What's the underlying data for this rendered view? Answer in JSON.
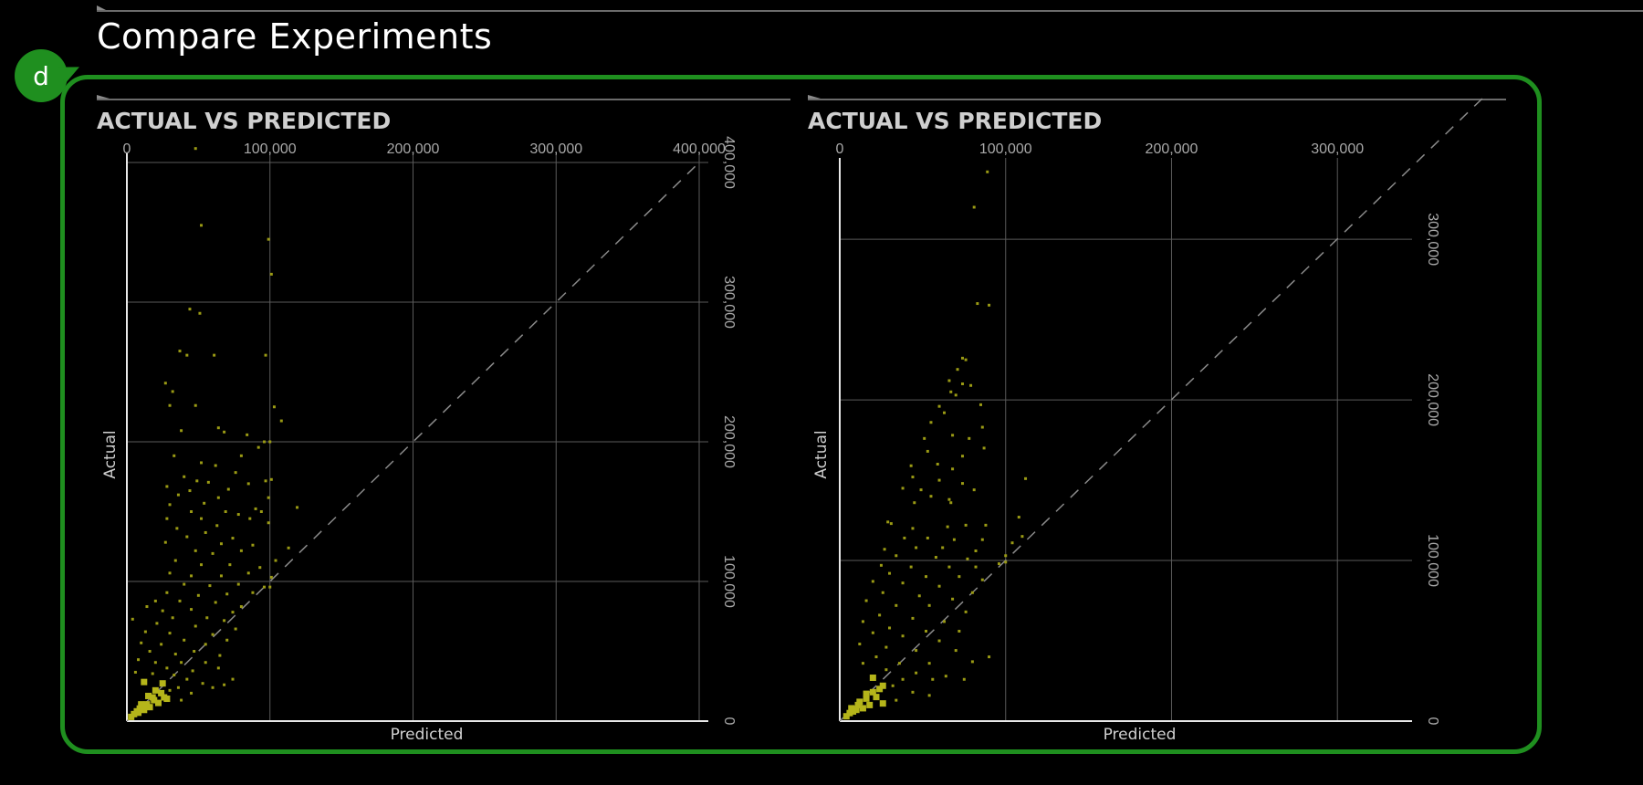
{
  "page": {
    "title": "Compare Experiments",
    "badge": "d"
  },
  "panels": [
    {
      "title": "ACTUAL VS PREDICTED"
    },
    {
      "title": "ACTUAL VS PREDICTED"
    }
  ],
  "chart_data": [
    {
      "type": "scatter",
      "title": "ACTUAL VS PREDICTED",
      "xlabel": "Predicted",
      "ylabel": "Actual",
      "xlim": [
        0,
        400000
      ],
      "ylim": [
        0,
        400000
      ],
      "x_ticks": [
        0,
        100000,
        200000,
        300000,
        400000
      ],
      "x_tick_labels": [
        "0",
        "100,000",
        "200,000",
        "300,000",
        "400,000"
      ],
      "y_ticks": [
        0,
        100000,
        200000,
        300000,
        400000
      ],
      "y_tick_labels": [
        "0",
        "100,000",
        "200,000",
        "300,000",
        "400,000"
      ],
      "reference_line": "y = x",
      "point_color": "#9a9a14",
      "grid": true,
      "points": [
        [
          48000,
          410000
        ],
        [
          52000,
          355000
        ],
        [
          99000,
          345000
        ],
        [
          101000,
          320000
        ],
        [
          44000,
          295000
        ],
        [
          51000,
          292000
        ],
        [
          37000,
          265000
        ],
        [
          42000,
          262000
        ],
        [
          61000,
          262000
        ],
        [
          97000,
          262000
        ],
        [
          27000,
          242000
        ],
        [
          32000,
          236000
        ],
        [
          30000,
          226000
        ],
        [
          48000,
          226000
        ],
        [
          103000,
          225000
        ],
        [
          108000,
          215000
        ],
        [
          38000,
          208000
        ],
        [
          64000,
          210000
        ],
        [
          68000,
          207000
        ],
        [
          84000,
          205000
        ],
        [
          96000,
          200000
        ],
        [
          100000,
          200000
        ],
        [
          92000,
          196000
        ],
        [
          33000,
          190000
        ],
        [
          80000,
          190000
        ],
        [
          52000,
          185000
        ],
        [
          62000,
          183000
        ],
        [
          76000,
          178000
        ],
        [
          40000,
          175000
        ],
        [
          49000,
          172000
        ],
        [
          57000,
          171000
        ],
        [
          101000,
          173000
        ],
        [
          97000,
          172000
        ],
        [
          28000,
          168000
        ],
        [
          44000,
          165000
        ],
        [
          71000,
          166000
        ],
        [
          85000,
          170000
        ],
        [
          36000,
          162000
        ],
        [
          64000,
          160000
        ],
        [
          30000,
          155000
        ],
        [
          54000,
          156000
        ],
        [
          99000,
          160000
        ],
        [
          45000,
          150000
        ],
        [
          69000,
          150000
        ],
        [
          90000,
          152000
        ],
        [
          119000,
          153000
        ],
        [
          94000,
          150000
        ],
        [
          28000,
          145000
        ],
        [
          52000,
          145000
        ],
        [
          78000,
          148000
        ],
        [
          86000,
          145000
        ],
        [
          35000,
          138000
        ],
        [
          63000,
          140000
        ],
        [
          99000,
          142000
        ],
        [
          42000,
          132000
        ],
        [
          55000,
          135000
        ],
        [
          74000,
          131000
        ],
        [
          27000,
          128000
        ],
        [
          66000,
          127000
        ],
        [
          88000,
          126000
        ],
        [
          113000,
          124000
        ],
        [
          48000,
          122000
        ],
        [
          60000,
          120000
        ],
        [
          80000,
          122000
        ],
        [
          104000,
          115000
        ],
        [
          34000,
          115000
        ],
        [
          52000,
          112000
        ],
        [
          72000,
          112000
        ],
        [
          93000,
          110000
        ],
        [
          30000,
          106000
        ],
        [
          45000,
          104000
        ],
        [
          66000,
          104000
        ],
        [
          85000,
          106000
        ],
        [
          101000,
          103000
        ],
        [
          40000,
          98000
        ],
        [
          58000,
          97000
        ],
        [
          78000,
          98000
        ],
        [
          96000,
          96000
        ],
        [
          28000,
          92000
        ],
        [
          50000,
          90000
        ],
        [
          70000,
          91000
        ],
        [
          88000,
          92000
        ],
        [
          100000,
          96000
        ],
        [
          20000,
          86000
        ],
        [
          37000,
          86000
        ],
        [
          62000,
          85000
        ],
        [
          80000,
          82000
        ],
        [
          14000,
          82000
        ],
        [
          25000,
          79000
        ],
        [
          45000,
          80000
        ],
        [
          74000,
          78000
        ],
        [
          32000,
          74000
        ],
        [
          56000,
          74000
        ],
        [
          68000,
          72000
        ],
        [
          4000,
          73000
        ],
        [
          21000,
          70000
        ],
        [
          48000,
          68000
        ],
        [
          76000,
          66000
        ],
        [
          13000,
          64000
        ],
        [
          30000,
          63000
        ],
        [
          60000,
          62000
        ],
        [
          40000,
          58000
        ],
        [
          70000,
          58000
        ],
        [
          10000,
          56000
        ],
        [
          24000,
          55000
        ],
        [
          55000,
          55000
        ],
        [
          16000,
          50000
        ],
        [
          34000,
          48000
        ],
        [
          47000,
          50000
        ],
        [
          65000,
          47000
        ],
        [
          8000,
          44000
        ],
        [
          20000,
          42000
        ],
        [
          38000,
          42000
        ],
        [
          55000,
          42000
        ],
        [
          28000,
          38000
        ],
        [
          46000,
          36000
        ],
        [
          64000,
          38000
        ],
        [
          6000,
          35000
        ],
        [
          18000,
          34000
        ],
        [
          33000,
          33000
        ],
        [
          42000,
          30000
        ],
        [
          74000,
          30000
        ],
        [
          12000,
          28000
        ],
        [
          25000,
          27000
        ],
        [
          53000,
          27000
        ],
        [
          68000,
          26000
        ],
        [
          36000,
          24000
        ],
        [
          20000,
          22000
        ],
        [
          30000,
          22000
        ],
        [
          45000,
          20000
        ],
        [
          60000,
          24000
        ],
        [
          15000,
          18000
        ],
        [
          26000,
          17000
        ],
        [
          38000,
          15000
        ],
        [
          28000,
          16000
        ],
        [
          22000,
          13000
        ],
        [
          10000,
          12000
        ],
        [
          16000,
          10000
        ],
        [
          12000,
          8000
        ],
        [
          8000,
          6000
        ],
        [
          5000,
          5000
        ],
        [
          3000,
          3000
        ],
        [
          18000,
          17000
        ],
        [
          24000,
          20000
        ],
        [
          19000,
          15000
        ],
        [
          14000,
          12000
        ],
        [
          9000,
          9000
        ],
        [
          7000,
          7000
        ]
      ]
    },
    {
      "type": "scatter",
      "title": "ACTUAL VS PREDICTED",
      "xlabel": "Predicted",
      "ylabel": "Actual",
      "xlim": [
        0,
        345000
      ],
      "ylim": [
        0,
        345000
      ],
      "x_ticks": [
        0,
        100000,
        200000,
        300000
      ],
      "x_tick_labels": [
        "0",
        "100,000",
        "200,000",
        "300,000"
      ],
      "y_ticks": [
        0,
        100000,
        200000,
        300000
      ],
      "y_tick_labels": [
        "0",
        "100,000",
        "200,000",
        "300,000"
      ],
      "reference_line": "y = x",
      "point_color": "#9a9a14",
      "grid": true,
      "points": [
        [
          89000,
          342000
        ],
        [
          81000,
          320000
        ],
        [
          83000,
          260000
        ],
        [
          90000,
          259000
        ],
        [
          74000,
          226000
        ],
        [
          76000,
          225000
        ],
        [
          71000,
          219000
        ],
        [
          66000,
          212000
        ],
        [
          74000,
          210000
        ],
        [
          79000,
          209000
        ],
        [
          67000,
          205000
        ],
        [
          70000,
          203000
        ],
        [
          60000,
          196000
        ],
        [
          85000,
          197000
        ],
        [
          63000,
          192000
        ],
        [
          55000,
          186000
        ],
        [
          86000,
          183000
        ],
        [
          68000,
          178000
        ],
        [
          51000,
          176000
        ],
        [
          78000,
          176000
        ],
        [
          87000,
          170000
        ],
        [
          53000,
          168000
        ],
        [
          74000,
          165000
        ],
        [
          43000,
          159000
        ],
        [
          59000,
          160000
        ],
        [
          68000,
          157000
        ],
        [
          112000,
          151000
        ],
        [
          44000,
          152000
        ],
        [
          60000,
          150000
        ],
        [
          74000,
          148000
        ],
        [
          38000,
          145000
        ],
        [
          49000,
          144000
        ],
        [
          81000,
          144000
        ],
        [
          55000,
          140000
        ],
        [
          66000,
          138000
        ],
        [
          45000,
          136000
        ],
        [
          67000,
          136000
        ],
        [
          108000,
          127000
        ],
        [
          29000,
          124000
        ],
        [
          31000,
          123000
        ],
        [
          44000,
          120000
        ],
        [
          65000,
          121000
        ],
        [
          76000,
          122000
        ],
        [
          88000,
          122000
        ],
        [
          110000,
          115000
        ],
        [
          39000,
          114000
        ],
        [
          53000,
          114000
        ],
        [
          69000,
          113000
        ],
        [
          86000,
          113000
        ],
        [
          104000,
          111000
        ],
        [
          27000,
          107000
        ],
        [
          46000,
          108000
        ],
        [
          62000,
          108000
        ],
        [
          82000,
          106000
        ],
        [
          100000,
          103000
        ],
        [
          34000,
          103000
        ],
        [
          58000,
          102000
        ],
        [
          77000,
          101000
        ],
        [
          96000,
          98000
        ],
        [
          25000,
          97000
        ],
        [
          43000,
          96000
        ],
        [
          66000,
          96000
        ],
        [
          82000,
          96000
        ],
        [
          100000,
          99000
        ],
        [
          30000,
          92000
        ],
        [
          52000,
          90000
        ],
        [
          72000,
          90000
        ],
        [
          86000,
          88000
        ],
        [
          20000,
          87000
        ],
        [
          38000,
          86000
        ],
        [
          60000,
          84000
        ],
        [
          80000,
          80000
        ],
        [
          26000,
          80000
        ],
        [
          48000,
          78000
        ],
        [
          68000,
          76000
        ],
        [
          16000,
          75000
        ],
        [
          34000,
          72000
        ],
        [
          54000,
          72000
        ],
        [
          76000,
          68000
        ],
        [
          24000,
          66000
        ],
        [
          44000,
          64000
        ],
        [
          63000,
          62000
        ],
        [
          14000,
          62000
        ],
        [
          30000,
          58000
        ],
        [
          52000,
          56000
        ],
        [
          72000,
          56000
        ],
        [
          20000,
          55000
        ],
        [
          38000,
          53000
        ],
        [
          60000,
          50000
        ],
        [
          90000,
          40000
        ],
        [
          12000,
          48000
        ],
        [
          28000,
          46000
        ],
        [
          46000,
          44000
        ],
        [
          70000,
          44000
        ],
        [
          22000,
          40000
        ],
        [
          36000,
          36000
        ],
        [
          54000,
          36000
        ],
        [
          80000,
          37000
        ],
        [
          14000,
          36000
        ],
        [
          28000,
          32000
        ],
        [
          46000,
          30000
        ],
        [
          64000,
          28000
        ],
        [
          20000,
          27000
        ],
        [
          38000,
          26000
        ],
        [
          56000,
          26000
        ],
        [
          75000,
          26000
        ],
        [
          26000,
          22000
        ],
        [
          32000,
          22000
        ],
        [
          44000,
          18000
        ],
        [
          54000,
          16000
        ],
        [
          16000,
          17000
        ],
        [
          22000,
          15000
        ],
        [
          34000,
          13000
        ],
        [
          12000,
          12000
        ],
        [
          18000,
          10000
        ],
        [
          26000,
          11000
        ],
        [
          14000,
          8000
        ],
        [
          10000,
          7000
        ],
        [
          6000,
          5000
        ],
        [
          4000,
          3000
        ],
        [
          8000,
          6000
        ],
        [
          20000,
          18000
        ],
        [
          24000,
          20000
        ],
        [
          16000,
          14000
        ],
        [
          11000,
          10000
        ],
        [
          7000,
          8000
        ]
      ]
    }
  ]
}
